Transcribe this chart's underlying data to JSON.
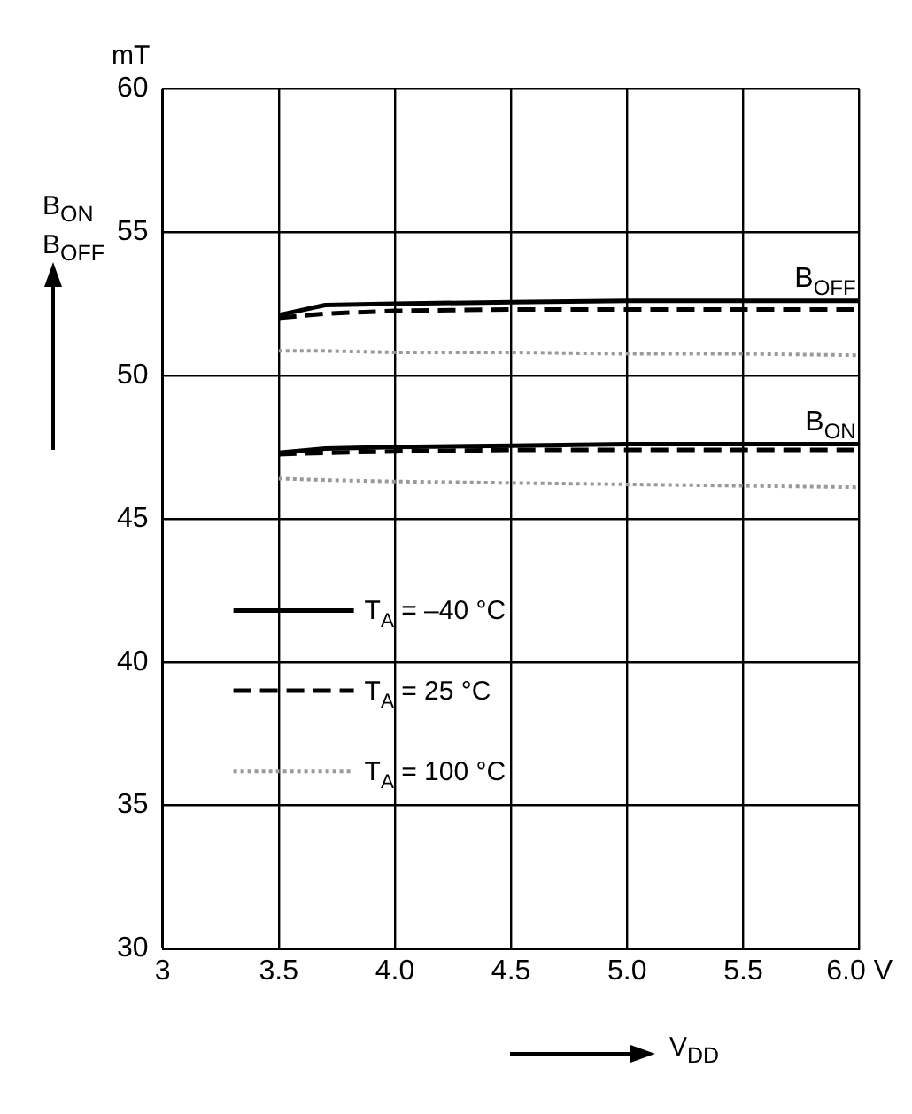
{
  "chart_data": {
    "type": "line",
    "xlabel": "V$_{DD}$",
    "ylabel": "B$_{ON}$ B$_{OFF}$",
    "x": [
      3.5,
      3.7,
      4.0,
      4.5,
      5.0,
      5.5,
      6.0
    ],
    "series": [
      {
        "name": "T$_{A}$ = –40 °C",
        "color": "#000000",
        "line_style": "solid",
        "values": [
          52.1,
          52.45,
          52.5,
          52.55,
          52.6,
          52.6,
          52.6
        ]
      },
      {
        "name": "T$_{A}$ = 25 °C",
        "color": "#000000",
        "line_style": "dashed",
        "values": [
          52.0,
          52.15,
          52.25,
          52.3,
          52.3,
          52.3,
          52.3
        ]
      },
      {
        "name": "T$_{A}$ = 100 °C",
        "color": "#999999",
        "line_style": "dotted",
        "values": [
          50.85,
          50.85,
          50.8,
          50.8,
          50.75,
          50.75,
          50.7
        ]
      },
      {
        "color": "#000000",
        "line_style": "solid",
        "values": [
          47.3,
          47.45,
          47.5,
          47.55,
          47.6,
          47.6,
          47.6
        ]
      },
      {
        "color": "#000000",
        "line_style": "dashed",
        "values": [
          47.25,
          47.3,
          47.35,
          47.4,
          47.4,
          47.4,
          47.4
        ]
      },
      {
        "color": "#999999",
        "line_style": "dotted",
        "values": [
          46.4,
          46.35,
          46.3,
          46.25,
          46.2,
          46.15,
          46.1
        ]
      }
    ],
    "xlim": [
      3,
      6
    ],
    "xticks": [
      3,
      3.5,
      {
        "value": 4,
        "label": "4.0"
      },
      4.5,
      {
        "value": 5,
        "label": "5.0"
      },
      5.5,
      {
        "value": 6,
        "label": "6.0 V"
      }
    ],
    "ylim": [
      30,
      60
    ],
    "yticks": [
      30,
      35,
      40,
      45,
      50,
      55,
      60
    ],
    "grid": true,
    "legend": "bottom left",
    "marker": "none",
    "annotations": [
      "mT",
      {
        "text": "B$_{OFF}$",
        "x": 6.0,
        "y": 52.6
      },
      {
        "text": "B$_{ON}$",
        "x": 6.0,
        "y": 47.6
      }
    ]
  }
}
